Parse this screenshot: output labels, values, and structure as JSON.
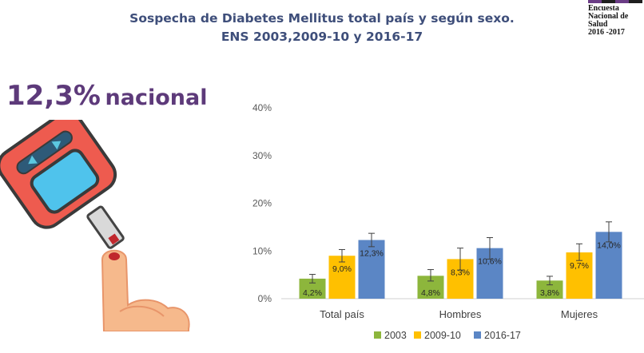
{
  "header": {
    "title_line1": "Sospecha de Diabetes Mellitus total país y según sexo.",
    "title_line2": "ENS 2003,2009-10 y 2016-17"
  },
  "logo": {
    "line1": "Encuesta",
    "line2": "Nacional de",
    "line3": "Salud",
    "line4": "2016 -2017"
  },
  "headline": {
    "value": "12,3%",
    "label": "nacional"
  },
  "illustration": {
    "icon": "glucometer-finger-icon"
  },
  "chart_data": {
    "type": "bar",
    "categories": [
      "Total país",
      "Hombres",
      "Mujeres"
    ],
    "series": [
      {
        "name": "2003",
        "color": "#8db63c",
        "values": [
          4.2,
          4.8,
          3.8
        ],
        "labels": [
          "4,2%",
          "4,8%",
          "3,8%"
        ],
        "err_low": [
          3.3,
          3.7,
          2.9
        ],
        "err_high": [
          5.1,
          6.1,
          4.7
        ]
      },
      {
        "name": "2009-10",
        "color": "#ffc000",
        "values": [
          9.0,
          8.3,
          9.7
        ],
        "labels": [
          "9,0%",
          "8,3%",
          "9,7%"
        ],
        "err_low": [
          7.7,
          6.0,
          8.0
        ],
        "err_high": [
          10.3,
          10.6,
          11.5
        ]
      },
      {
        "name": "2016-17",
        "color": "#5b86c5",
        "values": [
          12.3,
          10.6,
          14.0
        ],
        "labels": [
          "12,3%",
          "10,6%",
          "14,0%"
        ],
        "err_low": [
          10.9,
          8.3,
          11.9
        ],
        "err_high": [
          13.7,
          12.8,
          16.1
        ]
      }
    ],
    "yticks": [
      "0%",
      "10%",
      "20%",
      "30%",
      "40%"
    ],
    "ylim": [
      0,
      40
    ],
    "grid": false,
    "legend_position": "bottom"
  }
}
